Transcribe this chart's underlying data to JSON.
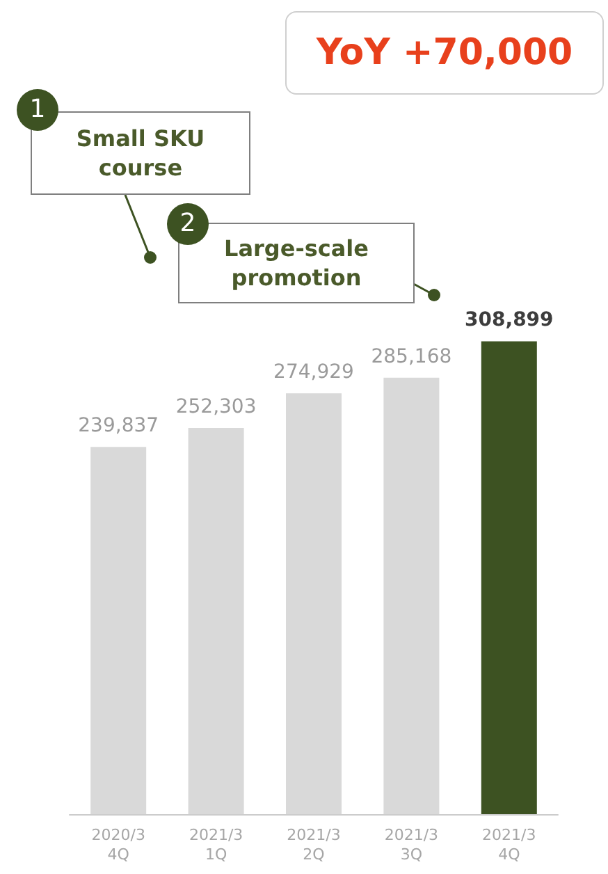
{
  "chart_data": {
    "type": "bar",
    "categories": [
      "2020/3 4Q",
      "2021/3 1Q",
      "2021/3 2Q",
      "2021/3 3Q",
      "2021/3 4Q"
    ],
    "values": [
      239837,
      252303,
      274929,
      285168,
      308899
    ],
    "value_labels": [
      "239,837",
      "252,303",
      "274,929",
      "285,168",
      "308,899"
    ],
    "colors": [
      "#d9d9d9",
      "#d9d9d9",
      "#d9d9d9",
      "#d9d9d9",
      "#3d5222"
    ],
    "tick_labels": "x",
    "grid": false,
    "annotations": [
      "YoY +70,000",
      "1",
      "Small SKU course",
      "2",
      "Large-scale promotion"
    ]
  }
}
